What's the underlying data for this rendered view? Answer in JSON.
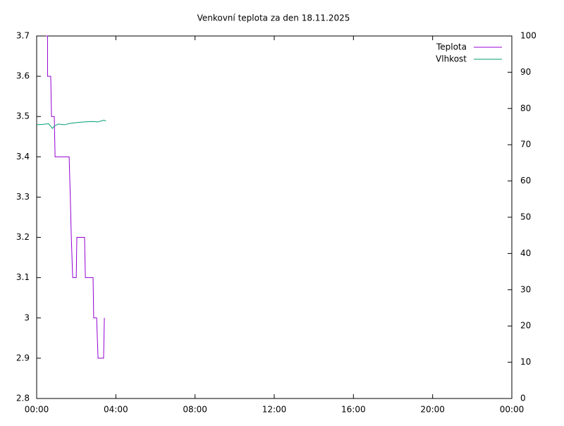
{
  "chart_data": {
    "type": "line",
    "title": "Venkovní teplota za den 18.11.2025",
    "xlim": [
      0,
      24
    ],
    "xticks": [
      {
        "value": 0,
        "label": "00:00"
      },
      {
        "value": 4,
        "label": "04:00"
      },
      {
        "value": 8,
        "label": "08:00"
      },
      {
        "value": 12,
        "label": "12:00"
      },
      {
        "value": 16,
        "label": "16:00"
      },
      {
        "value": 20,
        "label": "20:00"
      },
      {
        "value": 24,
        "label": "00:00"
      }
    ],
    "ylim": [
      2.8,
      3.7
    ],
    "yticks": [
      2.8,
      2.9,
      3,
      3.1,
      3.2,
      3.3,
      3.4,
      3.5,
      3.6,
      3.7
    ],
    "y2lim": [
      0,
      100
    ],
    "y2ticks": [
      0,
      10,
      20,
      30,
      40,
      50,
      60,
      70,
      80,
      90,
      100
    ],
    "grid": false,
    "legend": "top-right",
    "series": [
      {
        "name": "Teplota",
        "color": "#9400d3",
        "x": [
          0.47,
          0.55,
          0.55,
          0.71,
          0.75,
          0.89,
          0.93,
          1.64,
          1.7,
          1.75,
          1.82,
          2.0,
          2.03,
          2.42,
          2.46,
          2.85,
          2.88,
          3.03,
          3.1,
          3.38,
          3.42
        ],
        "values": [
          3.7,
          3.7,
          3.6,
          3.6,
          3.5,
          3.5,
          3.4,
          3.4,
          3.3,
          3.2,
          3.1,
          3.1,
          3.2,
          3.2,
          3.1,
          3.1,
          3.0,
          3.0,
          2.9,
          2.9,
          3.0
        ]
      },
      {
        "name": "Vlhkost",
        "color": "#009e73",
        "axis": "y2",
        "x": [
          0,
          0.3,
          0.6,
          0.8,
          0.9,
          1.1,
          1.4,
          1.7,
          2.0,
          2.4,
          2.8,
          3.1,
          3.4,
          3.5
        ],
        "values": [
          75.5,
          75.6,
          75.8,
          74.5,
          75.2,
          75.7,
          75.5,
          75.9,
          76.1,
          76.3,
          76.4,
          76.3,
          76.8,
          76.5
        ]
      }
    ]
  }
}
